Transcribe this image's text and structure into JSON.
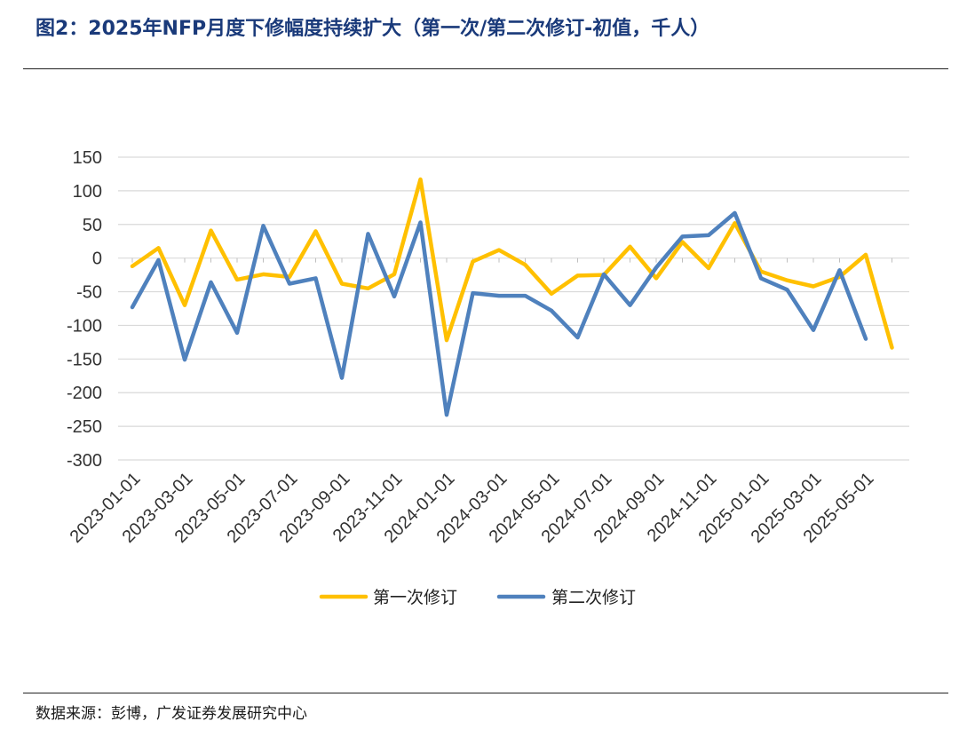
{
  "header": {
    "title": "图2：2025年NFP月度下修幅度持续扩大（第一次/第二次修订-初值，千人）"
  },
  "footer": {
    "source": "数据来源：彭博，广发证券发展研究中心"
  },
  "chart_data": {
    "type": "line",
    "title": "2025年NFP月度下修幅度持续扩大（第一次/第二次修订-初值，千人）",
    "ylim": [
      -300,
      150
    ],
    "yticks": [
      150,
      100,
      50,
      0,
      -50,
      -100,
      -150,
      -200,
      -250,
      -300
    ],
    "grid": true,
    "legend_position": "bottom",
    "x": [
      "2023-01-01",
      "2023-02-01",
      "2023-03-01",
      "2023-04-01",
      "2023-05-01",
      "2023-06-01",
      "2023-07-01",
      "2023-08-01",
      "2023-09-01",
      "2023-10-01",
      "2023-11-01",
      "2023-12-01",
      "2024-01-01",
      "2024-02-01",
      "2024-03-01",
      "2024-04-01",
      "2024-05-01",
      "2024-06-01",
      "2024-07-01",
      "2024-08-01",
      "2024-09-01",
      "2024-10-01",
      "2024-11-01",
      "2024-12-01",
      "2025-01-01",
      "2025-02-01",
      "2025-03-01",
      "2025-04-01",
      "2025-05-01",
      "2025-06-01"
    ],
    "xtick_labels": [
      "2023-01-01",
      "2023-03-01",
      "2023-05-01",
      "2023-07-01",
      "2023-09-01",
      "2023-11-01",
      "2024-01-01",
      "2024-03-01",
      "2024-05-01",
      "2024-07-01",
      "2024-09-01",
      "2024-11-01",
      "2025-01-01",
      "2025-03-01",
      "2025-05-01"
    ],
    "series": [
      {
        "name": "第一次修订",
        "color": "#FFC000",
        "values": [
          -12,
          15,
          -70,
          41,
          -32,
          -24,
          -28,
          40,
          -38,
          -45,
          -24,
          117,
          -122,
          -5,
          12,
          -10,
          -53,
          -26,
          -25,
          17,
          -30,
          24,
          -15,
          52,
          -20,
          -33,
          -42,
          -28,
          5,
          -133
        ]
      },
      {
        "name": "第二次修订",
        "color": "#4F81BD",
        "values": [
          -73,
          -3,
          -151,
          -36,
          -111,
          48,
          -38,
          -30,
          -178,
          36,
          -57,
          53,
          -233,
          -52,
          -56,
          -56,
          -78,
          -118,
          -24,
          -70,
          -14,
          32,
          34,
          67,
          -30,
          -47,
          -107,
          -18,
          -120,
          null
        ]
      }
    ]
  }
}
